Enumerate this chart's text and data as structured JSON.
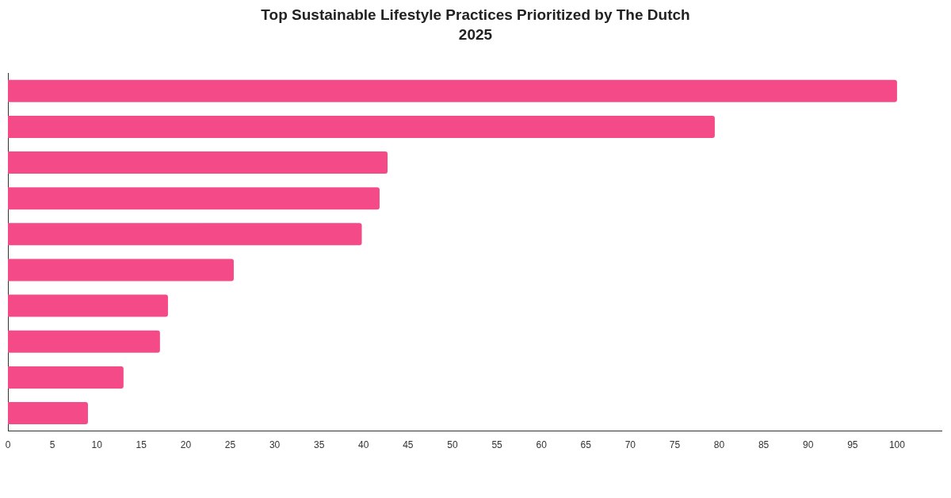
{
  "chart_data": {
    "type": "bar",
    "orientation": "horizontal",
    "title": "Top Sustainable Lifestyle Practices Prioritized by The Dutch 2025",
    "categories": [
      null,
      null,
      null,
      null,
      null,
      null,
      null,
      null,
      null,
      null
    ],
    "values": [
      100,
      79.5,
      42.7,
      41.8,
      39.8,
      25.4,
      18.0,
      17.1,
      13.0,
      9.0
    ],
    "color": "#f54a88",
    "xlim": [
      0,
      105
    ],
    "xticks": [
      0,
      5,
      10,
      15,
      20,
      25,
      30,
      35,
      40,
      45,
      50,
      55,
      60,
      65,
      70,
      75,
      80,
      85,
      90,
      95,
      100
    ],
    "grid": false,
    "legend": false
  }
}
